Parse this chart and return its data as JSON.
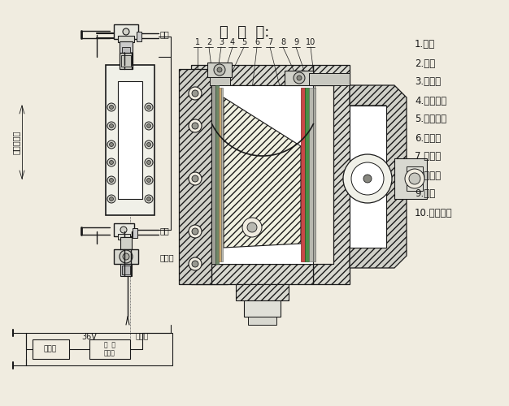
{
  "bg_color": "#f0ece0",
  "line_color": "#1a1a1a",
  "title": "剪  面  图:",
  "labels_right": [
    "1.容体",
    "2.基板",
    "3.绿色板",
    "4.密封压垄",
    "5.石棉垄片",
    "6.三棱镜",
    "7.红玻璃",
    "8.绿玻璃",
    "9.灯座",
    "10.石棉垄片"
  ],
  "left_top_label": "汽阀",
  "left_water_label": "水阀",
  "left_drain_label": "排污阀",
  "left_body_label": "液位计主体",
  "bottom_36v": "36V",
  "bottom_transformer": "变压器",
  "bottom_ballast": "电  子\n镇流器",
  "bottom_lamp": "接灯管"
}
